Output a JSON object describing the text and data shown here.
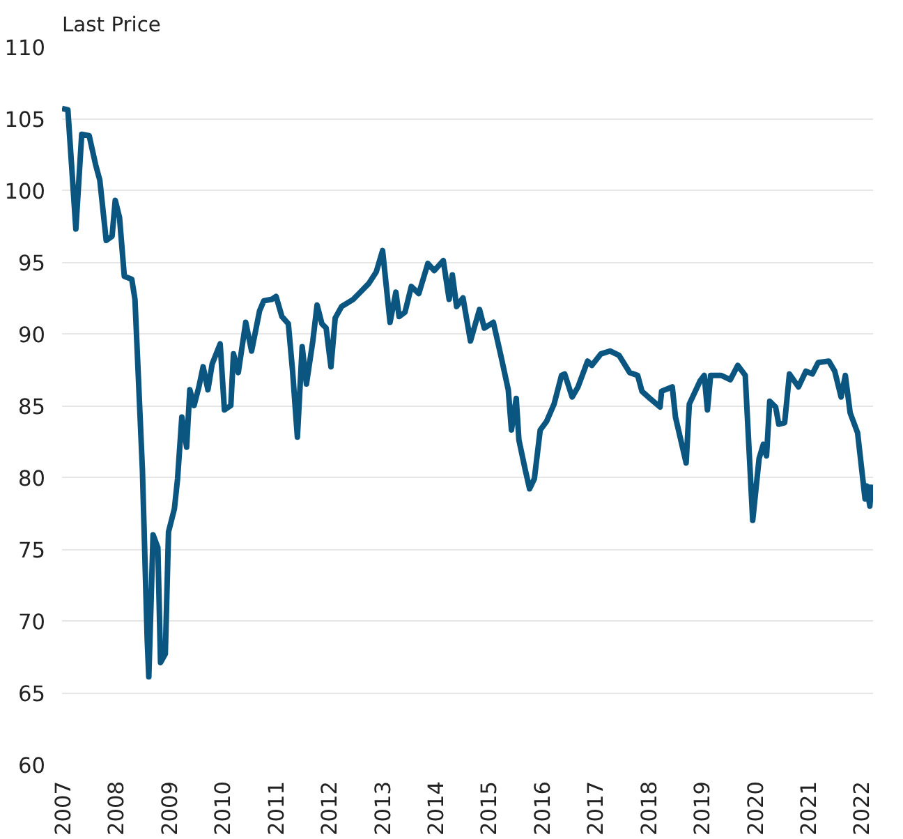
{
  "chart_data": {
    "type": "line",
    "ylabel": "Last Price",
    "grid": "y",
    "line_style": "solid",
    "xlim": [
      2007,
      2022.23
    ],
    "xticks": [
      2007,
      2008,
      2009,
      2010,
      2011,
      2012,
      2013,
      2014,
      2015,
      2016,
      2017,
      2018,
      2019,
      2020,
      2021,
      2022
    ],
    "ylim": [
      60,
      110
    ],
    "yticks": [
      60,
      65,
      70,
      75,
      80,
      85,
      90,
      95,
      100,
      105,
      110
    ],
    "series": [
      {
        "color": "#0b5680",
        "x": [
          2007.0,
          2007.11,
          2007.26,
          2007.37,
          2007.51,
          2007.63,
          2007.71,
          2007.83,
          2007.94,
          2008.0,
          2008.08,
          2008.17,
          2008.31,
          2008.37,
          2008.51,
          2008.6,
          2008.63,
          2008.71,
          2008.8,
          2008.85,
          2008.94,
          2009.0,
          2009.11,
          2009.17,
          2009.25,
          2009.34,
          2009.4,
          2009.48,
          2009.57,
          2009.65,
          2009.74,
          2009.82,
          2009.97,
          2010.05,
          2010.17,
          2010.22,
          2010.31,
          2010.45,
          2010.56,
          2010.71,
          2010.79,
          2010.94,
          2011.02,
          2011.13,
          2011.25,
          2011.33,
          2011.42,
          2011.51,
          2011.59,
          2011.71,
          2011.79,
          2011.88,
          2011.96,
          2012.05,
          2012.13,
          2012.25,
          2012.47,
          2012.76,
          2012.9,
          2013.02,
          2013.16,
          2013.27,
          2013.33,
          2013.44,
          2013.56,
          2013.7,
          2013.87,
          2013.99,
          2014.16,
          2014.27,
          2014.33,
          2014.41,
          2014.53,
          2014.67,
          2014.84,
          2014.93,
          2015.1,
          2015.24,
          2015.38,
          2015.44,
          2015.53,
          2015.58,
          2015.7,
          2015.78,
          2015.87,
          2015.98,
          2016.1,
          2016.24,
          2016.38,
          2016.44,
          2016.58,
          2016.69,
          2016.87,
          2016.95,
          2017.12,
          2017.29,
          2017.46,
          2017.66,
          2017.81,
          2017.89,
          2018.04,
          2018.23,
          2018.26,
          2018.46,
          2018.52,
          2018.72,
          2018.78,
          2018.98,
          2019.06,
          2019.12,
          2019.18,
          2019.38,
          2019.55,
          2019.69,
          2019.83,
          2019.97,
          2020.09,
          2020.17,
          2020.23,
          2020.29,
          2020.4,
          2020.46,
          2020.57,
          2020.66,
          2020.83,
          2020.97,
          2021.09,
          2021.2,
          2021.4,
          2021.51,
          2021.63,
          2021.71,
          2021.8,
          2021.94,
          2022.08,
          2022.11,
          2022.17,
          2022.2
        ],
        "values": [
          105.7,
          105.6,
          97.3,
          103.9,
          103.8,
          101.8,
          100.7,
          96.5,
          96.8,
          99.3,
          98.1,
          94.0,
          93.8,
          92.4,
          80.5,
          68.7,
          66.1,
          76.0,
          75.1,
          67.1,
          67.7,
          76.2,
          77.8,
          79.9,
          84.2,
          82.1,
          86.1,
          85.0,
          86.3,
          87.7,
          86.1,
          87.9,
          89.3,
          84.7,
          85.0,
          88.6,
          87.3,
          90.8,
          88.8,
          91.6,
          92.3,
          92.4,
          92.6,
          91.2,
          90.7,
          87.4,
          82.8,
          89.1,
          86.5,
          89.5,
          92.0,
          90.7,
          90.4,
          87.7,
          91.1,
          91.9,
          92.4,
          93.5,
          94.3,
          95.8,
          90.8,
          92.9,
          91.2,
          91.5,
          93.3,
          92.8,
          94.9,
          94.4,
          95.1,
          92.4,
          94.1,
          91.9,
          92.5,
          89.5,
          91.7,
          90.4,
          90.8,
          88.5,
          86.1,
          83.3,
          85.5,
          82.6,
          80.5,
          79.2,
          79.9,
          83.3,
          83.9,
          85.1,
          87.1,
          87.2,
          85.6,
          86.3,
          88.1,
          87.8,
          88.6,
          88.8,
          88.5,
          87.3,
          87.1,
          86.0,
          85.5,
          84.9,
          86.0,
          86.3,
          84.2,
          81.0,
          85.1,
          86.7,
          87.1,
          84.7,
          87.1,
          87.1,
          86.8,
          87.8,
          87.1,
          77.0,
          81.3,
          82.3,
          81.5,
          85.3,
          84.9,
          83.7,
          83.8,
          87.2,
          86.3,
          87.4,
          87.2,
          88.0,
          88.1,
          87.4,
          85.6,
          87.1,
          84.5,
          83.1,
          78.5,
          79.4,
          78.0,
          79.5
        ]
      }
    ]
  }
}
